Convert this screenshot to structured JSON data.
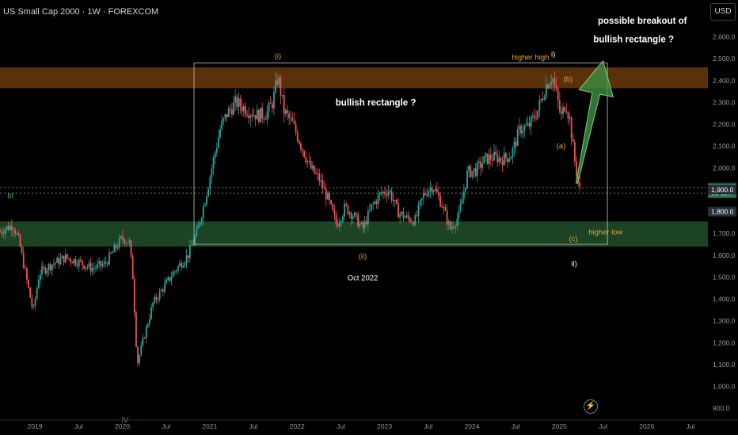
{
  "header": {
    "symbol": "US Small Cap 2000 · 1W · FOREXCOM",
    "currency_button": "USD"
  },
  "colors": {
    "up_candle": "#26a69a",
    "down_candle": "#ef5350",
    "resistance_zone": "#6b3a0e",
    "support_zone": "#1e4a28",
    "arrow_fill": "#3f8f45",
    "annotation_gold": "#e0a43a",
    "annotation_green": "#4caf50",
    "text_white": "#ffffff"
  },
  "icons": [
    "flash-icon"
  ],
  "chart_data": {
    "type": "candlestick",
    "title": "US Small Cap 2000 · 1W · FOREXCOM",
    "x_ticks": [
      "2019",
      "Jul",
      "2020",
      "Jul",
      "2021",
      "Jul",
      "2022",
      "Jul",
      "2023",
      "Jul",
      "2024",
      "Jul",
      "2025",
      "Jul",
      "2026",
      "Jul"
    ],
    "y_ticks": [
      "2,600.0",
      "2,500.0",
      "2,400.0",
      "2,300.0",
      "2,200.0",
      "2,100.0",
      "2,000.0",
      "1,900.0",
      "1,800.0",
      "1,700.0",
      "1,600.0",
      "1,500.0",
      "1,400.0",
      "1,300.0",
      "1,200.0",
      "1,100.0",
      "1,000.0",
      "900.0"
    ],
    "ylim": [
      850,
      2660
    ],
    "xlim": [
      2018.6,
      2026.7
    ],
    "grid": false,
    "price_labels": [
      {
        "text": "1,908.5",
        "value": 1908.5,
        "style": "last"
      },
      {
        "text": "1d 19h",
        "value": 1885,
        "style": "countdown"
      },
      {
        "text": "1,900.0",
        "value": 1900,
        "style": "line"
      },
      {
        "text": "1,800.0",
        "value": 1800,
        "style": "line"
      }
    ],
    "horizontal_lines": [
      1908.5,
      1885
    ],
    "zones": [
      {
        "name": "resistance",
        "from": 2365,
        "to": 2460
      },
      {
        "name": "support",
        "from": 1640,
        "to": 1755
      }
    ],
    "rectangle": {
      "x0": 2020.82,
      "x1": 2025.55,
      "y0": 1650,
      "y1": 2480
    },
    "arrow": {
      "from": [
        2025.2,
        1930
      ],
      "to": [
        2025.5,
        2490
      ]
    },
    "annotations": [
      {
        "text": "(i)",
        "x": 2021.78,
        "y": 2500,
        "color": "gold"
      },
      {
        "text": "higher high",
        "x": 2024.67,
        "y": 2495,
        "color": "gold"
      },
      {
        "text": "i)",
        "x": 2024.93,
        "y": 2510,
        "color": "white"
      },
      {
        "text": "(b)",
        "x": 2025.1,
        "y": 2395,
        "color": "gold"
      },
      {
        "text": "(a)",
        "x": 2025.02,
        "y": 2090,
        "color": "gold"
      },
      {
        "text": "(c)",
        "x": 2025.16,
        "y": 1665,
        "color": "gold"
      },
      {
        "text": "higher low",
        "x": 2025.53,
        "y": 1695,
        "color": "gold"
      },
      {
        "text": "ii)",
        "x": 2025.17,
        "y": 1550,
        "color": "white"
      },
      {
        "text": "(ii)",
        "x": 2022.75,
        "y": 1585,
        "color": "gold"
      },
      {
        "text": "Oct 2022",
        "x": 2022.75,
        "y": 1485,
        "color": "white"
      },
      {
        "text": "bullish rectangle ?",
        "x": 2022.9,
        "y": 2285,
        "color": "white"
      },
      {
        "text": "possible breakout of",
        "x": 2025.95,
        "y": 2660,
        "color": "white"
      },
      {
        "text": "bullish rectangle ?",
        "x": 2025.85,
        "y": 2575,
        "color": "white"
      },
      {
        "text": "III",
        "x": 2018.72,
        "y": 1860,
        "color": "green"
      },
      {
        "text": "IV",
        "x": 2020.03,
        "y": 835,
        "color": "green"
      }
    ],
    "series": [
      {
        "name": "",
        "anchors": [
          [
            2018.6,
            1710
          ],
          [
            2018.75,
            1740
          ],
          [
            2018.82,
            1660
          ],
          [
            2018.9,
            1500
          ],
          [
            2018.98,
            1340
          ],
          [
            2019.05,
            1520
          ],
          [
            2019.2,
            1560
          ],
          [
            2019.35,
            1590
          ],
          [
            2019.5,
            1570
          ],
          [
            2019.65,
            1540
          ],
          [
            2019.8,
            1560
          ],
          [
            2019.9,
            1620
          ],
          [
            2020.0,
            1680
          ],
          [
            2020.08,
            1660
          ],
          [
            2020.12,
            1500
          ],
          [
            2020.17,
            1100
          ],
          [
            2020.23,
            1200
          ],
          [
            2020.35,
            1380
          ],
          [
            2020.5,
            1470
          ],
          [
            2020.62,
            1540
          ],
          [
            2020.75,
            1600
          ],
          [
            2020.85,
            1700
          ],
          [
            2020.95,
            1860
          ],
          [
            2021.05,
            2050
          ],
          [
            2021.12,
            2180
          ],
          [
            2021.2,
            2250
          ],
          [
            2021.3,
            2300
          ],
          [
            2021.45,
            2260
          ],
          [
            2021.55,
            2240
          ],
          [
            2021.65,
            2250
          ],
          [
            2021.72,
            2300
          ],
          [
            2021.78,
            2420
          ],
          [
            2021.85,
            2260
          ],
          [
            2021.95,
            2200
          ],
          [
            2022.05,
            2100
          ],
          [
            2022.15,
            2000
          ],
          [
            2022.25,
            1950
          ],
          [
            2022.35,
            1860
          ],
          [
            2022.45,
            1740
          ],
          [
            2022.55,
            1820
          ],
          [
            2022.65,
            1780
          ],
          [
            2022.75,
            1720
          ],
          [
            2022.85,
            1820
          ],
          [
            2022.95,
            1880
          ],
          [
            2023.05,
            1900
          ],
          [
            2023.15,
            1800
          ],
          [
            2023.25,
            1770
          ],
          [
            2023.35,
            1760
          ],
          [
            2023.45,
            1880
          ],
          [
            2023.55,
            1920
          ],
          [
            2023.65,
            1840
          ],
          [
            2023.75,
            1720
          ],
          [
            2023.85,
            1780
          ],
          [
            2023.95,
            1980
          ],
          [
            2024.05,
            1990
          ],
          [
            2024.15,
            2040
          ],
          [
            2024.25,
            2050
          ],
          [
            2024.35,
            2040
          ],
          [
            2024.45,
            2060
          ],
          [
            2024.55,
            2180
          ],
          [
            2024.65,
            2190
          ],
          [
            2024.75,
            2260
          ],
          [
            2024.85,
            2380
          ],
          [
            2024.92,
            2420
          ],
          [
            2024.97,
            2330
          ],
          [
            2025.02,
            2230
          ],
          [
            2025.07,
            2300
          ],
          [
            2025.12,
            2220
          ],
          [
            2025.17,
            2050
          ],
          [
            2025.22,
            1920
          ],
          [
            2025.25,
            1880
          ]
        ]
      }
    ]
  }
}
